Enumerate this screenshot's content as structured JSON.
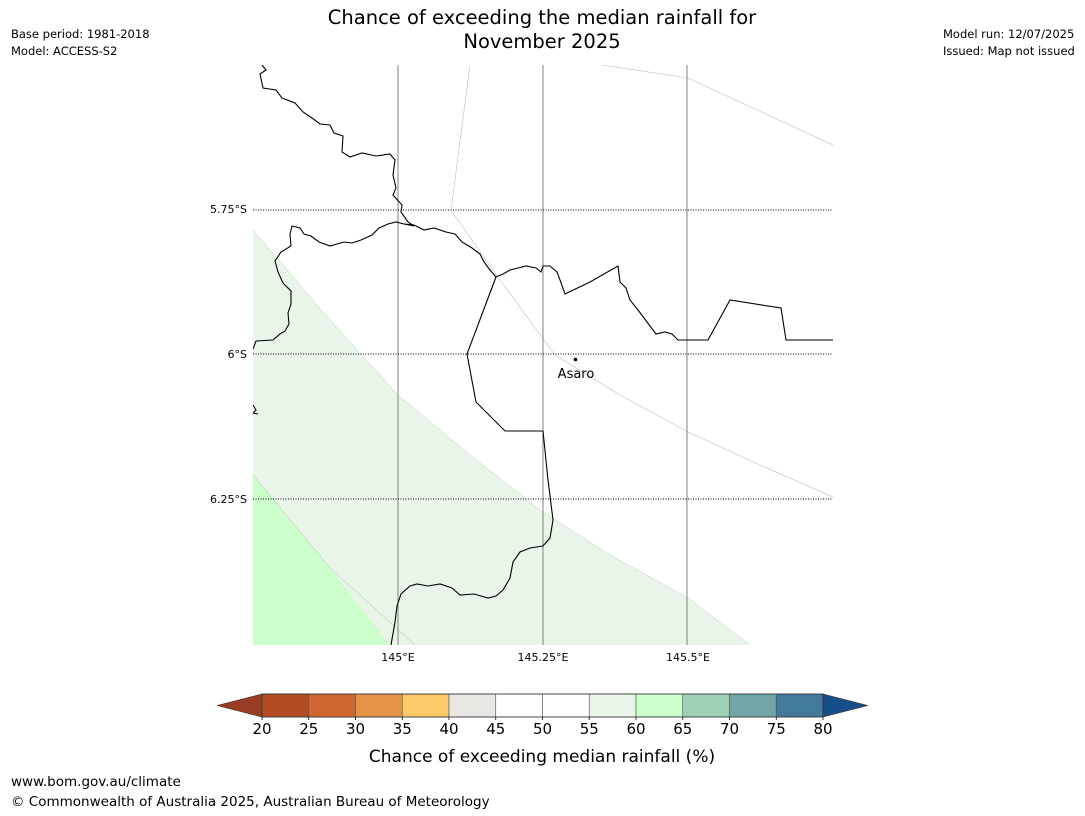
{
  "title_line1": "Chance of exceeding the median rainfall for",
  "title_line2": "November 2025",
  "meta_left": {
    "base_period": "Base period: 1981-2018",
    "model": "Model: ACCESS-S2"
  },
  "meta_right": {
    "model_run": "Model run: 12/07/2025",
    "issued": "Issued: Map not issued"
  },
  "map": {
    "latitude_labels": [
      "5.75°S",
      "6°S",
      "6.25°S"
    ],
    "longitude_labels": [
      "145°E",
      "145.25°E",
      "145.5°E"
    ],
    "place": {
      "name": "Asaro"
    },
    "regions": [
      {
        "category": "55-60",
        "color": "#e8f5e8"
      },
      {
        "category": "60-65",
        "color": "#ccffcc"
      }
    ]
  },
  "colorbar": {
    "label": "Chance of exceeding median rainfall (%)",
    "ticks": [
      "20",
      "25",
      "30",
      "35",
      "40",
      "45",
      "50",
      "55",
      "60",
      "65",
      "70",
      "75",
      "80"
    ],
    "colors": [
      "#b34b25",
      "#cf6530",
      "#e59346",
      "#fdca69",
      "#e9e7e3",
      "#ffffff",
      "#ffffff",
      "#e8f5e8",
      "#ccffcc",
      "#9fd0b8",
      "#72a5a6",
      "#43799a"
    ],
    "under_color": "#993c22",
    "over_color": "#164e8a"
  },
  "footer": {
    "url": "www.bom.gov.au/climate",
    "copyright": "© Commonwealth of Australia 2025, Australian Bureau of Meteorology"
  }
}
